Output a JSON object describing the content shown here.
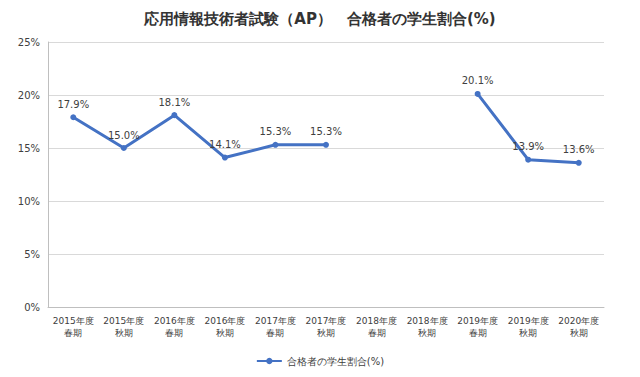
{
  "chart_data": {
    "type": "line",
    "title": "応用情報技術者試験（AP）　合格者の学生割合(%)",
    "categories": [
      "2015年度\n春期",
      "2015年度\n秋期",
      "2016年度\n春期",
      "2016年度\n秋期",
      "2017年度\n春期",
      "2017年度\n秋期",
      "2018年度\n春期",
      "2018年度\n秋期",
      "2019年度\n春期",
      "2019年度\n秋期",
      "2020年度\n秋期"
    ],
    "series": [
      {
        "name": "合格者の学生割合(%)",
        "color": "#4472c4",
        "marker": "circle",
        "values": [
          17.9,
          15.0,
          18.1,
          14.1,
          15.3,
          15.3,
          null,
          null,
          20.1,
          13.9,
          13.6
        ],
        "value_labels": [
          "17.9%",
          "15.0%",
          "18.1%",
          "14.1%",
          "15.3%",
          "15.3%",
          null,
          null,
          "20.1%",
          "13.9%",
          "13.6%"
        ]
      }
    ],
    "ylim": [
      0,
      25
    ],
    "yticks": [
      {
        "value": 0,
        "label": "0%"
      },
      {
        "value": 5,
        "label": "5%"
      },
      {
        "value": 10,
        "label": "10%"
      },
      {
        "value": 15,
        "label": "15%"
      },
      {
        "value": 20,
        "label": "20%"
      },
      {
        "value": 25,
        "label": "25%"
      }
    ],
    "grid": true,
    "legend": "bottom",
    "data_labels": true
  }
}
